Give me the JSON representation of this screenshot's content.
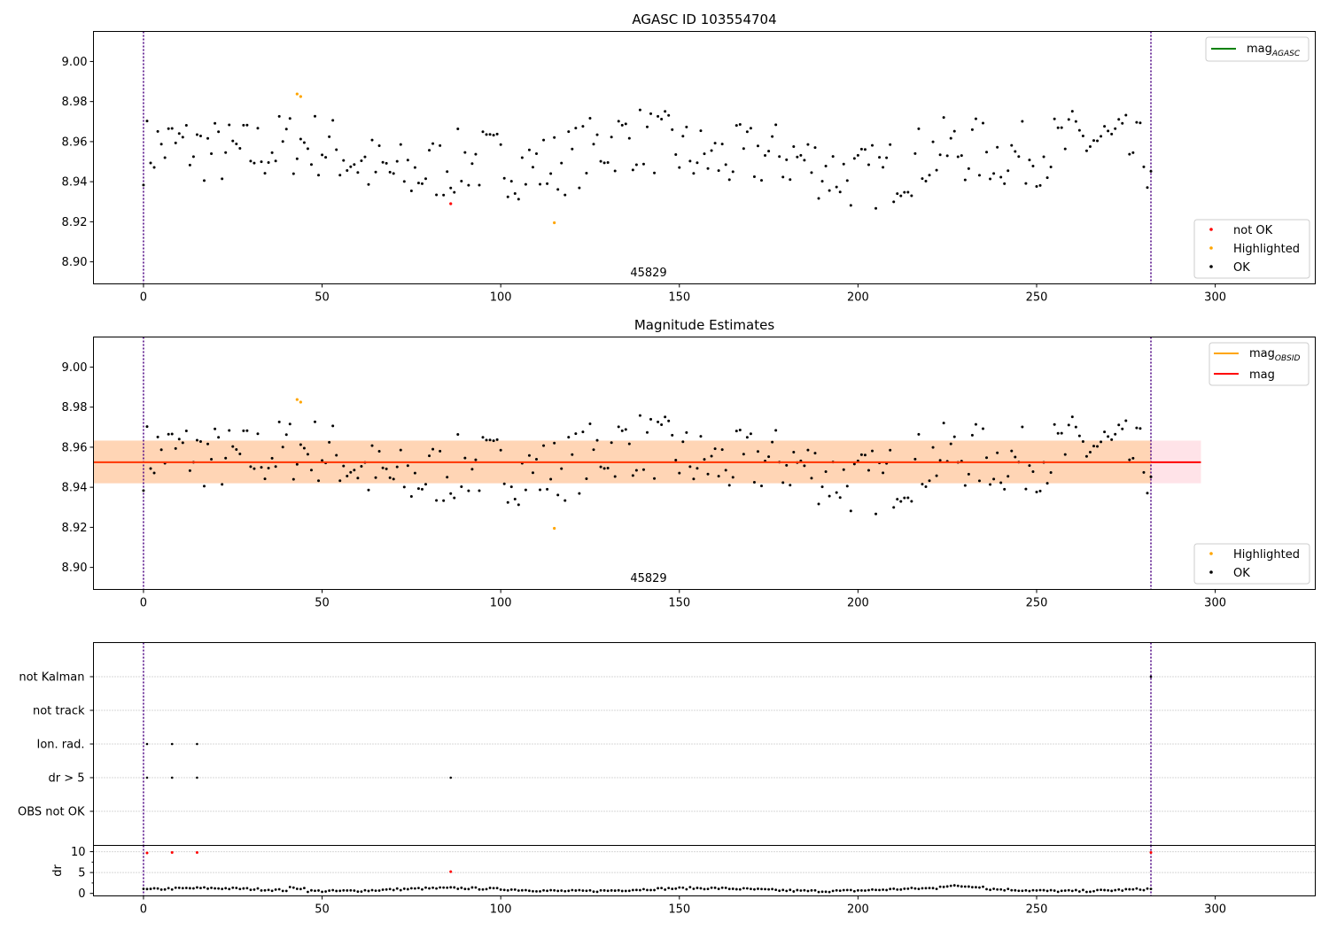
{
  "chart_data": [
    {
      "id": "agasc",
      "type": "scatter",
      "title": "AGASC ID 103554704",
      "obsid_label": "45829",
      "xlim": [
        -14,
        328
      ],
      "ylim": [
        8.889,
        9.015
      ],
      "xticks": [
        0,
        50,
        100,
        150,
        200,
        250,
        300
      ],
      "yticks": [
        8.9,
        8.92,
        8.94,
        8.96,
        8.98,
        9.0
      ],
      "ytick_labels": [
        "8.90",
        "8.92",
        "8.94",
        "8.96",
        "8.98",
        "9.00"
      ],
      "vlines": [
        0,
        282
      ],
      "legend_lines": [
        {
          "label_main": "mag",
          "label_sub": "AGASC",
          "color": "#008000"
        }
      ],
      "legend_points": [
        {
          "label": "not OK",
          "color": "#ff0000"
        },
        {
          "label": "Highlighted",
          "color": "#ffa500"
        },
        {
          "label": "OK",
          "color": "#000000"
        }
      ],
      "special_points": [
        {
          "x": 43,
          "y": 8.9838,
          "status": "Highlighted"
        },
        {
          "x": 44,
          "y": 8.9825,
          "status": "Highlighted"
        },
        {
          "x": 115,
          "y": 8.9195,
          "status": "Highlighted"
        },
        {
          "x": 86,
          "y": 8.929,
          "status": "not OK"
        }
      ]
    },
    {
      "id": "estimates",
      "type": "scatter",
      "title": "Magnitude Estimates",
      "obsid_label": "45829",
      "xlim": [
        -14,
        328
      ],
      "ylim": [
        8.889,
        9.015
      ],
      "xticks": [
        0,
        50,
        100,
        150,
        200,
        250,
        300
      ],
      "yticks": [
        8.9,
        8.92,
        8.94,
        8.96,
        8.98,
        9.0
      ],
      "ytick_labels": [
        "8.90",
        "8.92",
        "8.94",
        "8.96",
        "8.98",
        "9.00"
      ],
      "vlines": [
        0,
        282
      ],
      "mag_line": {
        "y": 8.9525,
        "x0": -14,
        "x1": 296
      },
      "band_outer": {
        "y0": 8.942,
        "y1": 8.9633,
        "x0": -14,
        "x1": 296
      },
      "band_inner": {
        "y0": 8.942,
        "y1": 8.9633,
        "x0": -14,
        "x1": 282
      },
      "legend_lines": [
        {
          "label_main": "mag",
          "label_sub": "OBSID",
          "color": "#ffa500"
        },
        {
          "label_main": "mag",
          "label_sub": "",
          "color": "#ff0000"
        }
      ],
      "legend_points": [
        {
          "label": "Highlighted",
          "color": "#ffa500"
        },
        {
          "label": "OK",
          "color": "#000000"
        }
      ],
      "special_points": [
        {
          "x": 43,
          "y": 8.9838,
          "status": "Highlighted"
        },
        {
          "x": 44,
          "y": 8.9825,
          "status": "Highlighted"
        },
        {
          "x": 115,
          "y": 8.9195,
          "status": "Highlighted"
        }
      ]
    },
    {
      "id": "flags",
      "type": "scatter",
      "categories": [
        "OBS not OK",
        "dr > 5",
        "Ion. rad.",
        "not track",
        "not Kalman"
      ],
      "xlim": [
        -14,
        328
      ],
      "vlines": [
        0,
        282
      ],
      "flag_points": [
        {
          "x": 1,
          "category": "Ion. rad."
        },
        {
          "x": 8,
          "category": "Ion. rad."
        },
        {
          "x": 15,
          "category": "Ion. rad."
        },
        {
          "x": 1,
          "category": "dr > 5"
        },
        {
          "x": 8,
          "category": "dr > 5"
        },
        {
          "x": 15,
          "category": "dr > 5"
        },
        {
          "x": 86,
          "category": "dr > 5"
        },
        {
          "x": 282,
          "category": "not Kalman"
        }
      ]
    },
    {
      "id": "dr",
      "type": "scatter",
      "ylabel": "dr",
      "xlim": [
        -14,
        328
      ],
      "ylim": [
        -0.6,
        11.5
      ],
      "xticks": [
        0,
        50,
        100,
        150,
        200,
        250,
        300
      ],
      "yticks": [
        0,
        5,
        10
      ],
      "vlines": [
        0,
        282
      ],
      "special_points": [
        {
          "x": 1,
          "y": 9.7
        },
        {
          "x": 8,
          "y": 9.8
        },
        {
          "x": 15,
          "y": 9.8
        },
        {
          "x": 86,
          "y": 5.2
        },
        {
          "x": 282,
          "y": 9.8
        }
      ]
    }
  ]
}
